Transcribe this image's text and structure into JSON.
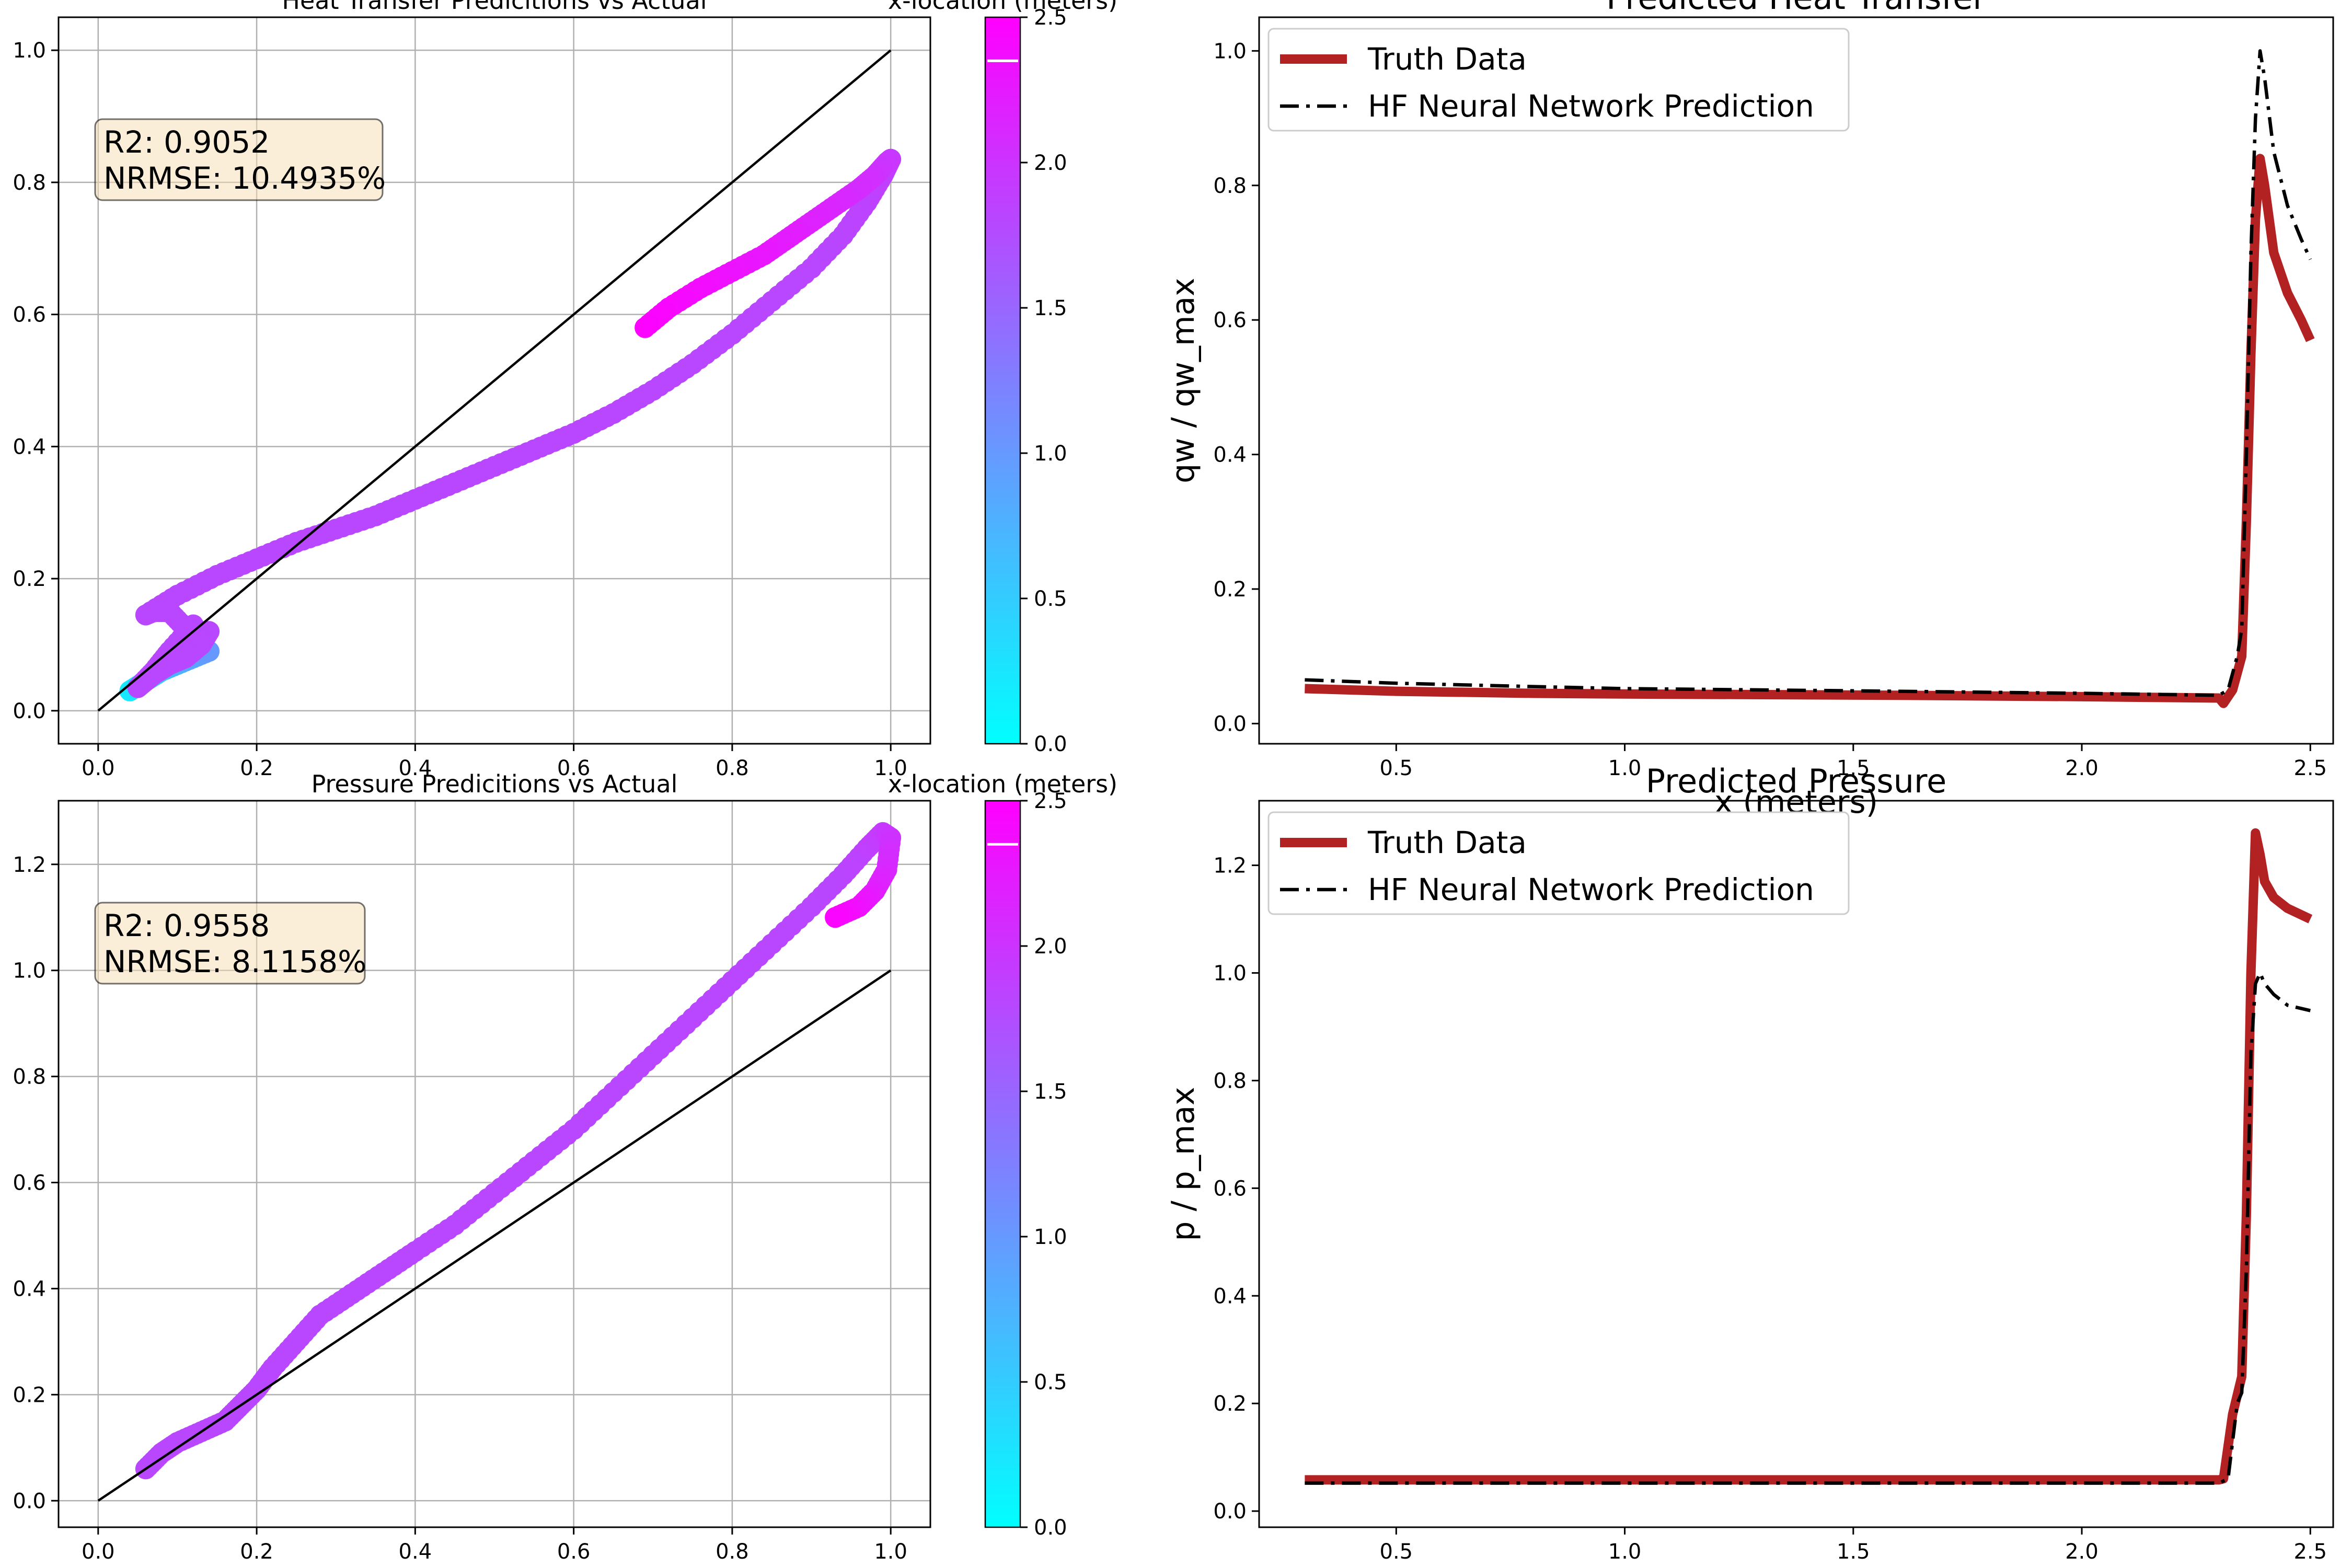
{
  "colorbar_ticks": [
    "0.0",
    "0.5",
    "1.0",
    "1.5",
    "2.0",
    "2.5"
  ],
  "chart_data": [
    {
      "type": "scatter",
      "title": "Heat Transfer Predicitions vs Actual",
      "xlim": [
        -0.05,
        1.05
      ],
      "ylim": [
        -0.05,
        1.05
      ],
      "xticks": [
        "0.0",
        "0.2",
        "0.4",
        "0.6",
        "0.8",
        "1.0"
      ],
      "yticks": [
        "0.0",
        "0.2",
        "0.4",
        "0.6",
        "0.8",
        "1.0"
      ],
      "grid": true,
      "reference_line": {
        "x": [
          0,
          1
        ],
        "y": [
          0,
          1
        ]
      },
      "annotation": {
        "line1": "R2: 0.9052",
        "line2": "NRMSE: 10.4935%"
      },
      "colorbar": {
        "label": "x-location (meters)",
        "range": [
          0,
          2.5
        ],
        "colors": [
          "#00ffff",
          "#ff00ff"
        ]
      },
      "series": [
        {
          "x": [
            0.04,
            0.06,
            0.08,
            0.11,
            0.14
          ],
          "y": [
            0.03,
            0.045,
            0.06,
            0.075,
            0.09
          ],
          "c": [
            0.2,
            0.4,
            0.6,
            0.8,
            1.0
          ]
        },
        {
          "x": [
            0.14,
            0.13,
            0.11,
            0.09,
            0.07,
            0.06,
            0.05,
            0.07,
            0.09,
            0.12,
            0.13,
            0.11,
            0.09,
            0.07,
            0.06,
            0.1,
            0.15,
            0.2,
            0.25,
            0.3,
            0.35,
            0.4,
            0.45,
            0.5,
            0.55,
            0.6,
            0.65,
            0.7,
            0.75,
            0.8,
            0.85,
            0.9,
            0.94,
            0.97,
            0.99,
            1.0,
            0.995,
            0.98,
            0.96,
            0.93,
            0.9,
            0.87,
            0.84,
            0.8,
            0.76,
            0.72,
            0.69
          ],
          "y": [
            0.12,
            0.1,
            0.08,
            0.07,
            0.055,
            0.045,
            0.035,
            0.06,
            0.09,
            0.13,
            0.11,
            0.125,
            0.15,
            0.15,
            0.145,
            0.175,
            0.205,
            0.23,
            0.255,
            0.275,
            0.295,
            0.32,
            0.345,
            0.37,
            0.395,
            0.42,
            0.45,
            0.485,
            0.525,
            0.57,
            0.62,
            0.67,
            0.72,
            0.77,
            0.81,
            0.835,
            0.83,
            0.81,
            0.79,
            0.765,
            0.74,
            0.715,
            0.69,
            0.665,
            0.64,
            0.61,
            0.58
          ],
          "c": [
            1.8,
            1.8,
            1.8,
            1.8,
            1.8,
            1.8,
            1.8,
            1.8,
            1.8,
            1.8,
            1.8,
            1.8,
            1.8,
            1.8,
            1.8,
            1.8,
            1.8,
            1.8,
            1.8,
            1.8,
            1.8,
            1.8,
            1.8,
            1.8,
            1.8,
            1.8,
            1.8,
            1.8,
            1.8,
            1.8,
            1.8,
            1.8,
            1.82,
            1.85,
            1.88,
            1.92,
            1.97,
            2.02,
            2.07,
            2.12,
            2.17,
            2.22,
            2.27,
            2.32,
            2.37,
            2.42,
            2.47
          ]
        }
      ]
    },
    {
      "type": "line",
      "title": "Predicted Heat Transfer",
      "xlabel": "x (meters)",
      "ylabel": "qw / qw_max",
      "xlim": [
        0.2,
        2.55
      ],
      "ylim": [
        -0.03,
        1.05
      ],
      "xticks": [
        "0.5",
        "1.0",
        "1.5",
        "2.0",
        "2.5"
      ],
      "yticks": [
        "0.0",
        "0.2",
        "0.4",
        "0.6",
        "0.8",
        "1.0"
      ],
      "grid": false,
      "legend": "top-left",
      "series": [
        {
          "name": "Truth Data",
          "color": "#b22222",
          "x": [
            0.3,
            0.5,
            0.8,
            1.0,
            1.3,
            1.6,
            2.0,
            2.3,
            2.31,
            2.33,
            2.35,
            2.36,
            2.37,
            2.38,
            2.39,
            2.4,
            2.42,
            2.45,
            2.48,
            2.5
          ],
          "y": [
            0.052,
            0.048,
            0.045,
            0.044,
            0.043,
            0.042,
            0.04,
            0.038,
            0.03,
            0.05,
            0.1,
            0.3,
            0.55,
            0.75,
            0.84,
            0.8,
            0.7,
            0.64,
            0.6,
            0.57
          ]
        },
        {
          "name": "HF Neural Network Prediction",
          "color": "#000000",
          "x": [
            0.3,
            0.5,
            0.8,
            1.0,
            1.3,
            1.6,
            2.0,
            2.3,
            2.32,
            2.34,
            2.35,
            2.36,
            2.37,
            2.38,
            2.39,
            2.4,
            2.42,
            2.45,
            2.48,
            2.5
          ],
          "y": [
            0.065,
            0.06,
            0.055,
            0.052,
            0.05,
            0.048,
            0.045,
            0.042,
            0.05,
            0.1,
            0.14,
            0.4,
            0.7,
            0.9,
            1.0,
            0.96,
            0.85,
            0.77,
            0.72,
            0.69
          ]
        }
      ]
    },
    {
      "type": "scatter",
      "title": "Pressure Predicitions vs Actual",
      "xlim": [
        -0.05,
        1.05
      ],
      "ylim": [
        -0.05,
        1.32
      ],
      "xticks": [
        "0.0",
        "0.2",
        "0.4",
        "0.6",
        "0.8",
        "1.0"
      ],
      "yticks": [
        "0.0",
        "0.2",
        "0.4",
        "0.6",
        "0.8",
        "1.0",
        "1.2"
      ],
      "grid": true,
      "reference_line": {
        "x": [
          0,
          1
        ],
        "y": [
          0,
          1
        ]
      },
      "annotation": {
        "line1": "R2: 0.9558",
        "line2": "NRMSE: 8.1158%"
      },
      "colorbar": {
        "label": "x-location (meters)",
        "range": [
          0,
          2.5
        ],
        "colors": [
          "#00ffff",
          "#ff00ff"
        ]
      },
      "series": [
        {
          "x": [
            0.06,
            0.08,
            0.1,
            0.13,
            0.16,
            0.18,
            0.2,
            0.22,
            0.25,
            0.28,
            0.32,
            0.36,
            0.4,
            0.45,
            0.5,
            0.55,
            0.6,
            0.65,
            0.7,
            0.75,
            0.8,
            0.85,
            0.9,
            0.94,
            0.97,
            0.99,
            1.0,
            0.995,
            0.98,
            0.96,
            0.93
          ],
          "y": [
            0.06,
            0.09,
            0.11,
            0.13,
            0.15,
            0.18,
            0.21,
            0.25,
            0.3,
            0.35,
            0.39,
            0.43,
            0.47,
            0.52,
            0.58,
            0.64,
            0.7,
            0.77,
            0.84,
            0.91,
            0.98,
            1.05,
            1.12,
            1.18,
            1.23,
            1.26,
            1.25,
            1.19,
            1.15,
            1.12,
            1.1
          ],
          "c": [
            1.8,
            1.8,
            1.8,
            1.8,
            1.8,
            1.8,
            1.8,
            1.8,
            1.8,
            1.8,
            1.8,
            1.8,
            1.8,
            1.8,
            1.8,
            1.8,
            1.8,
            1.8,
            1.8,
            1.8,
            1.8,
            1.8,
            1.8,
            1.82,
            1.86,
            1.92,
            2.0,
            2.1,
            2.2,
            2.32,
            2.45
          ]
        }
      ]
    },
    {
      "type": "line",
      "title": "Predicted Pressure",
      "ylabel": "p / p_max",
      "xlim": [
        0.2,
        2.55
      ],
      "ylim": [
        -0.03,
        1.32
      ],
      "xticks": [
        "0.5",
        "1.0",
        "1.5",
        "2.0",
        "2.5"
      ],
      "yticks": [
        "0.0",
        "0.2",
        "0.4",
        "0.6",
        "0.8",
        "1.0",
        "1.2"
      ],
      "grid": false,
      "legend": "top-left",
      "series": [
        {
          "name": "Truth Data",
          "color": "#b22222",
          "x": [
            0.3,
            1.0,
            2.0,
            2.3,
            2.31,
            2.33,
            2.35,
            2.36,
            2.37,
            2.38,
            2.39,
            2.4,
            2.42,
            2.45,
            2.5
          ],
          "y": [
            0.058,
            0.058,
            0.058,
            0.058,
            0.06,
            0.18,
            0.25,
            0.55,
            1.0,
            1.26,
            1.22,
            1.17,
            1.14,
            1.12,
            1.1
          ]
        },
        {
          "name": "HF Neural Network Prediction",
          "color": "#000000",
          "x": [
            0.3,
            1.0,
            2.0,
            2.3,
            2.32,
            2.34,
            2.35,
            2.36,
            2.37,
            2.38,
            2.39,
            2.4,
            2.42,
            2.45,
            2.5
          ],
          "y": [
            0.052,
            0.052,
            0.052,
            0.052,
            0.06,
            0.2,
            0.22,
            0.45,
            0.85,
            0.98,
            1.0,
            0.98,
            0.96,
            0.94,
            0.93
          ]
        }
      ]
    }
  ]
}
